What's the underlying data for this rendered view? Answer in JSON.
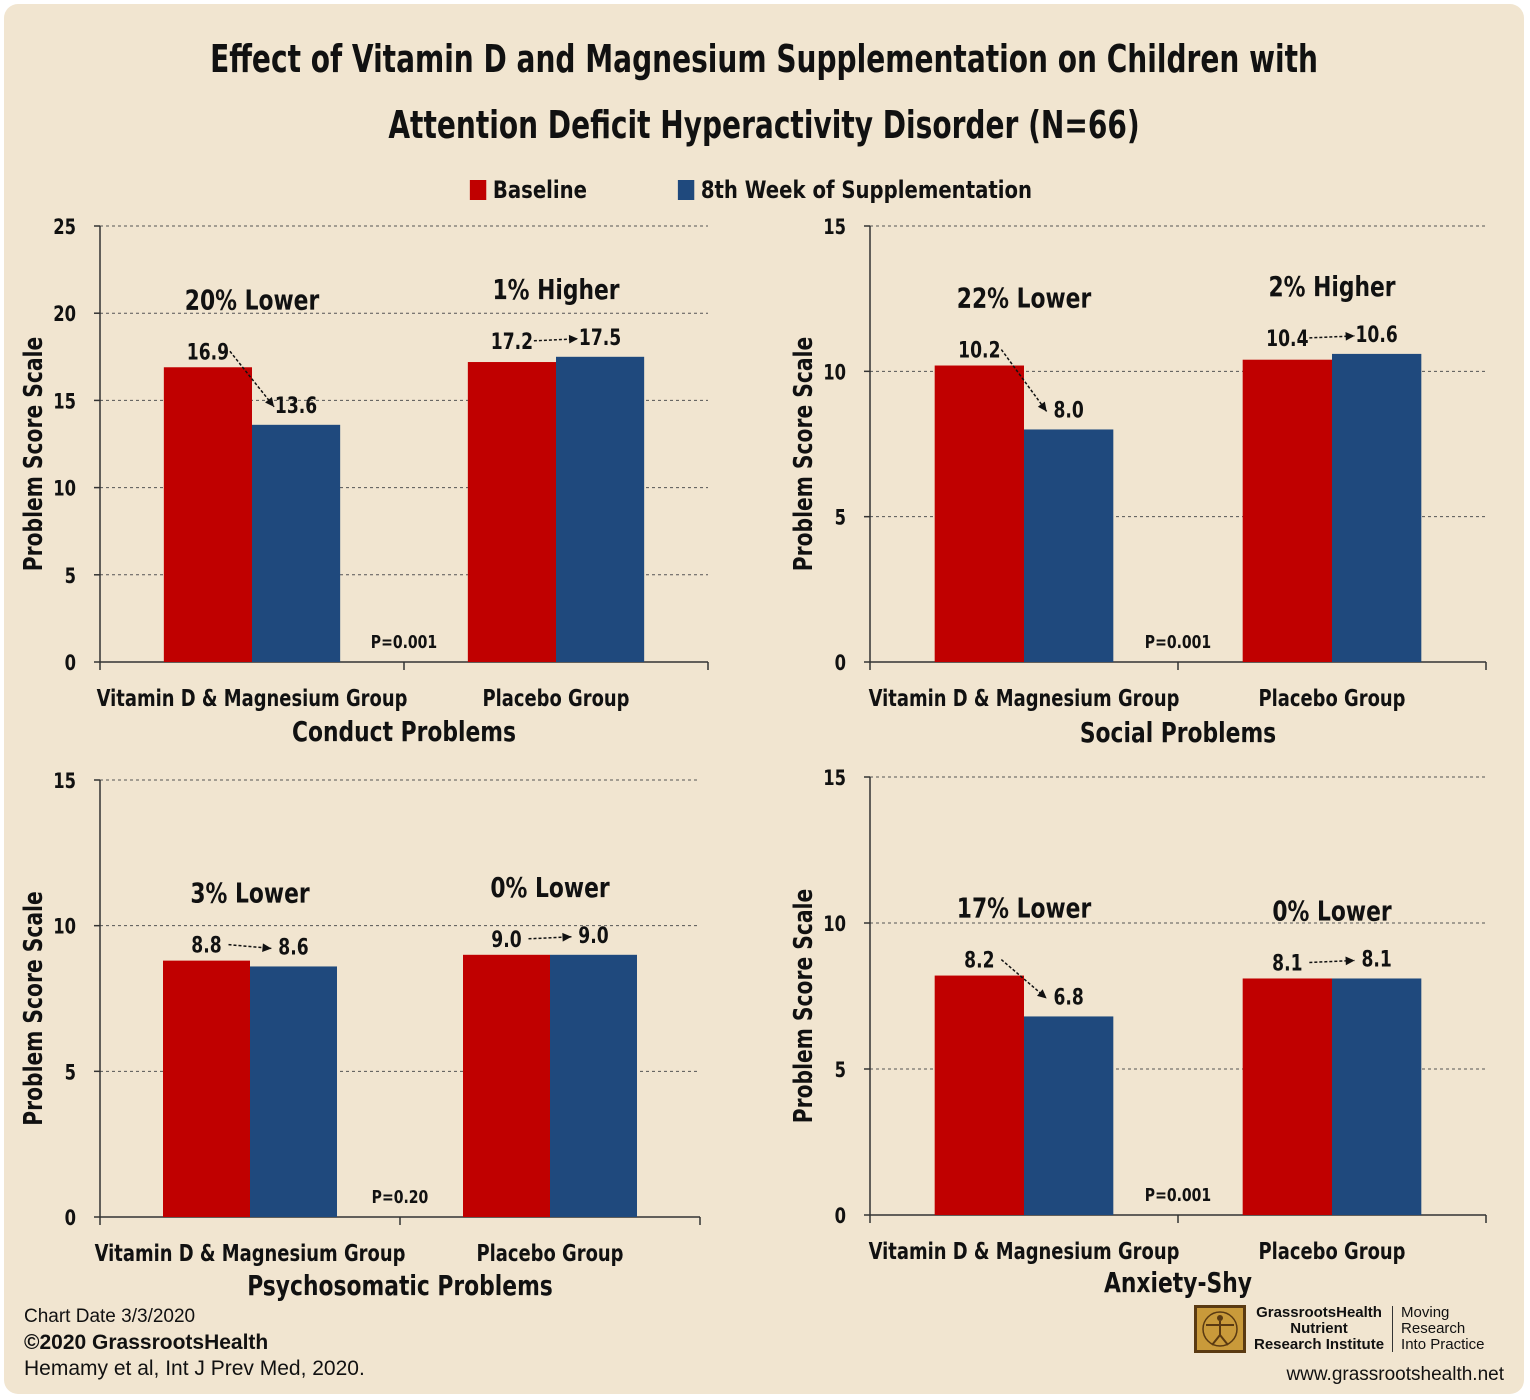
{
  "title_line1": "Effect of Vitamin D and Magnesium Supplementation on Children with",
  "title_line2": "Attention Deficit Hyperactivity Disorder (N=66)",
  "legend": [
    {
      "label": "Baseline",
      "color": "#c00000"
    },
    {
      "label": "8th Week of Supplementation",
      "color": "#1f497d"
    }
  ],
  "chart_data": [
    {
      "type": "bar",
      "title": "Conduct Problems",
      "ylabel": "Problem Score Scale",
      "ylim": [
        0,
        25
      ],
      "yticks": [
        0,
        5,
        10,
        15,
        20,
        25
      ],
      "categories": [
        "Vitamin D & Magnesium Group",
        "Placebo Group"
      ],
      "series": [
        {
          "name": "Baseline",
          "values": [
            16.9,
            17.2
          ],
          "labels": [
            "16.9",
            "17.2"
          ]
        },
        {
          "name": "8th Week of Supplementation",
          "values": [
            13.6,
            17.5
          ],
          "labels": [
            "13.6",
            "17.5"
          ]
        }
      ],
      "change_labels": [
        "20% Lower",
        "1% Higher"
      ],
      "p_value": "P=0.001",
      "grid": true
    },
    {
      "type": "bar",
      "title": "Social Problems",
      "ylabel": "Problem Score Scale",
      "ylim": [
        0,
        15
      ],
      "yticks": [
        0,
        5,
        10,
        15
      ],
      "categories": [
        "Vitamin D & Magnesium Group",
        "Placebo Group"
      ],
      "series": [
        {
          "name": "Baseline",
          "values": [
            10.2,
            10.4
          ],
          "labels": [
            "10.2",
            "10.4"
          ]
        },
        {
          "name": "8th Week of Supplementation",
          "values": [
            8.0,
            10.6
          ],
          "labels": [
            "8.0",
            "10.6"
          ]
        }
      ],
      "change_labels": [
        "22% Lower",
        "2% Higher"
      ],
      "p_value": "P=0.001",
      "grid": true
    },
    {
      "type": "bar",
      "title": "Psychosomatic Problems",
      "ylabel": "Problem Score Scale",
      "ylim": [
        0,
        15
      ],
      "yticks": [
        0,
        5,
        10,
        15
      ],
      "categories": [
        "Vitamin D & Magnesium Group",
        "Placebo Group"
      ],
      "series": [
        {
          "name": "Baseline",
          "values": [
            8.8,
            9.0
          ],
          "labels": [
            "8.8",
            "9.0"
          ]
        },
        {
          "name": "8th Week of Supplementation",
          "values": [
            8.6,
            9.0
          ],
          "labels": [
            "8.6",
            "9.0"
          ]
        }
      ],
      "change_labels": [
        "3% Lower",
        "0% Lower"
      ],
      "p_value": "P=0.20",
      "grid": true
    },
    {
      "type": "bar",
      "title": "Anxiety-Shy",
      "ylabel": "Problem Score Scale",
      "ylim": [
        0,
        15
      ],
      "yticks": [
        0,
        5,
        10,
        15
      ],
      "categories": [
        "Vitamin D & Magnesium Group",
        "Placebo Group"
      ],
      "series": [
        {
          "name": "Baseline",
          "values": [
            8.2,
            8.1
          ],
          "labels": [
            "8.2",
            "8.1"
          ]
        },
        {
          "name": "8th Week of Supplementation",
          "values": [
            6.8,
            8.1
          ],
          "labels": [
            "6.8",
            "8.1"
          ]
        }
      ],
      "change_labels": [
        "17% Lower",
        "0% Lower"
      ],
      "p_value": "P=0.001",
      "grid": true
    }
  ],
  "footer": {
    "chart_date": "Chart Date 3/3/2020",
    "copyright": "©2020 GrassrootsHealth",
    "citation": "Hemamy et al, Int J Prev Med, 2020."
  },
  "logo": {
    "name_line1": "GrassrootsHealth",
    "name_line2": "Nutrient",
    "name_line3": "Research Institute",
    "tagline_line1": "Moving",
    "tagline_line2": "Research",
    "tagline_line3": "Into Practice"
  },
  "website": "www.grassrootshealth.net"
}
